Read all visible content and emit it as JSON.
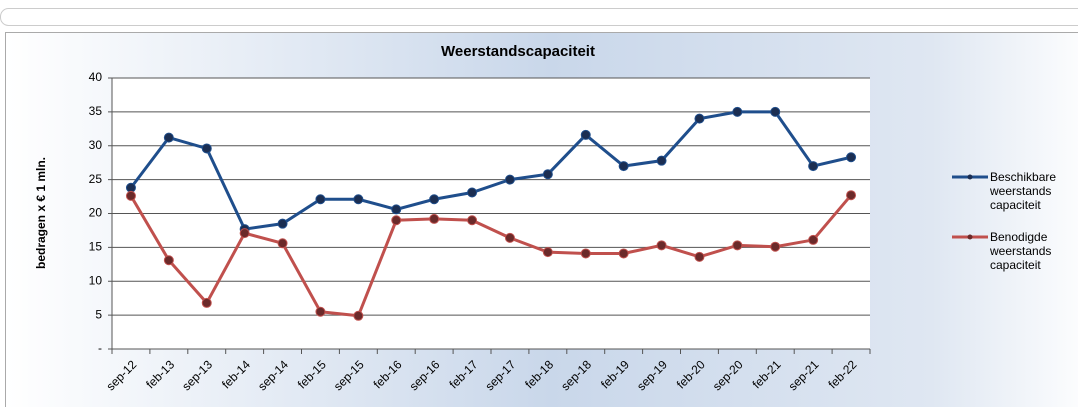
{
  "chart_data": {
    "type": "line",
    "title": "Weerstandscapaciteit",
    "y_label": "bedragen x € 1 mln.",
    "categories": [
      "sep-12",
      "feb-13",
      "sep-13",
      "feb-14",
      "sep-14",
      "feb-15",
      "sep-15",
      "feb-16",
      "sep-16",
      "feb-17",
      "sep-17",
      "feb-18",
      "sep-18",
      "feb-19",
      "sep-19",
      "feb-20",
      "sep-20",
      "feb-21",
      "sep-21",
      "feb-22"
    ],
    "series": [
      {
        "name": "Beschikbare weerstands capaciteit",
        "color": "#1f4e8c",
        "marker_color": "#1b2e52",
        "values": [
          23.8,
          31.2,
          29.6,
          17.7,
          18.5,
          22.1,
          22.1,
          20.6,
          22.1,
          23.1,
          25.0,
          25.8,
          31.6,
          27.0,
          27.8,
          34.0,
          35.0,
          35.0,
          27.0,
          28.3
        ]
      },
      {
        "name": "Benodigde weerstands capaciteit",
        "color": "#c0504d",
        "marker_color": "#6b2a2a",
        "values": [
          22.6,
          13.1,
          6.8,
          17.1,
          15.6,
          5.5,
          4.9,
          19.0,
          19.2,
          19.0,
          16.4,
          14.3,
          14.1,
          14.1,
          15.3,
          13.6,
          15.3,
          15.1,
          16.1,
          22.7
        ]
      }
    ],
    "ylim": [
      0,
      40
    ],
    "yticks": [
      {
        "value": 0,
        "label": "-"
      },
      5,
      10,
      15,
      20,
      25,
      30,
      35,
      40
    ],
    "grid": true,
    "legend": "right"
  }
}
